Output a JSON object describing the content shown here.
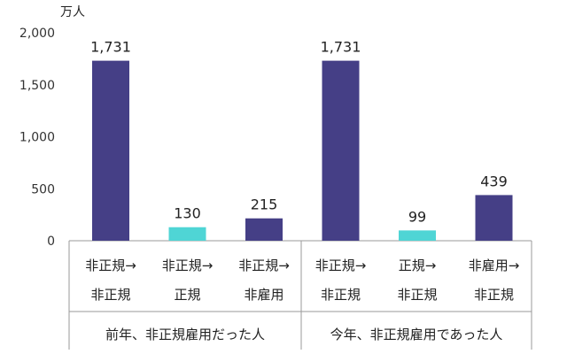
{
  "chart_data": {
    "type": "bar",
    "unit_label": "万人",
    "ylim": [
      0,
      2000
    ],
    "yticks": [
      "2,000",
      "1,500",
      "1,000",
      "500",
      "0"
    ],
    "ytick_values": [
      2000,
      1500,
      1000,
      500,
      0
    ],
    "grid": false,
    "colors": {
      "dark": "#453f86",
      "light": "#4fd5d5"
    },
    "categories": [
      {
        "line1": "非正規→",
        "line2": "非正規",
        "value": 1731,
        "label": "1,731",
        "color": "dark"
      },
      {
        "line1": "非正規→",
        "line2": "正規",
        "value": 130,
        "label": "130",
        "color": "light"
      },
      {
        "line1": "非正規→",
        "line2": "非雇用",
        "value": 215,
        "label": "215",
        "color": "dark"
      },
      {
        "line1": "非正規→",
        "line2": "非正規",
        "value": 1731,
        "label": "1,731",
        "color": "dark"
      },
      {
        "line1": "正規→",
        "line2": "非正規",
        "value": 99,
        "label": "99",
        "color": "light"
      },
      {
        "line1": "非雇用→",
        "line2": "非正規",
        "value": 439,
        "label": "439",
        "color": "dark"
      }
    ],
    "groups": [
      {
        "label": "前年、非正規雇用だった人"
      },
      {
        "label": "今年、非正規雇用であった人"
      }
    ]
  }
}
